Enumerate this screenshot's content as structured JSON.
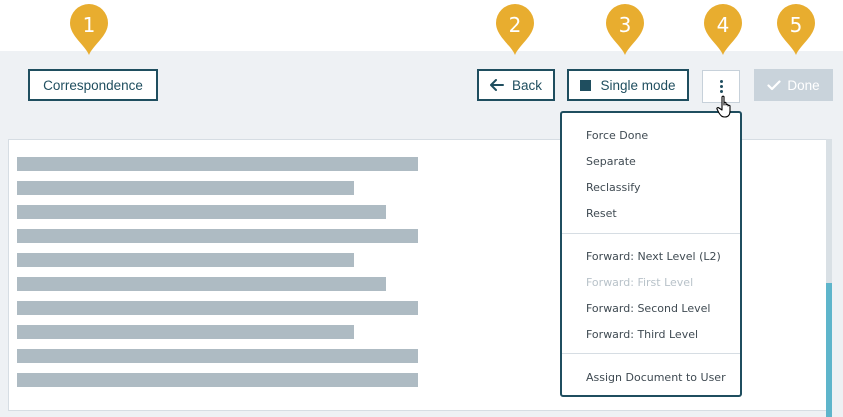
{
  "callouts": [
    "1",
    "2",
    "3",
    "4",
    "5"
  ],
  "toolbar": {
    "correspondence_label": "Correspondence",
    "back_label": "Back",
    "back_icon": "arrow-left-icon",
    "single_mode_label": "Single mode",
    "single_mode_icon": "square-icon",
    "more_icon": "kebab-menu-icon",
    "done_label": "Done",
    "done_icon": "check-icon",
    "done_enabled": false
  },
  "menu": {
    "items": [
      {
        "label": "Force Done",
        "enabled": true
      },
      {
        "label": "Separate",
        "enabled": true
      },
      {
        "label": "Reclassify",
        "enabled": true
      },
      {
        "label": "Reset",
        "enabled": true
      },
      {
        "label": "Forward: Next Level  (L2)",
        "enabled": true
      },
      {
        "label": "Forward: First Level",
        "enabled": false
      },
      {
        "label": "Forward: Second Level",
        "enabled": true
      },
      {
        "label": "Forward: Third Level",
        "enabled": true
      },
      {
        "label": "Assign Document to User",
        "enabled": true
      }
    ]
  },
  "colors": {
    "callout": "#e8ad2f",
    "primary": "#1f4e5f",
    "done_disabled_bg": "#c9d3db",
    "placeholder_line": "#aebbc3",
    "scroll_thumb": "#5eb5cb"
  }
}
